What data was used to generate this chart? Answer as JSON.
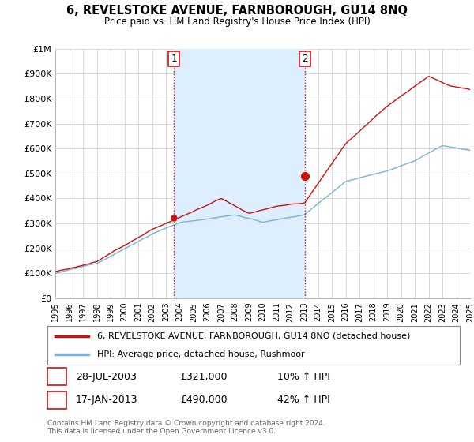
{
  "title": "6, REVELSTOKE AVENUE, FARNBOROUGH, GU14 8NQ",
  "subtitle": "Price paid vs. HM Land Registry's House Price Index (HPI)",
  "ylabel_ticks": [
    "£0",
    "£100K",
    "£200K",
    "£300K",
    "£400K",
    "£500K",
    "£600K",
    "£700K",
    "£800K",
    "£900K",
    "£1M"
  ],
  "ytick_values": [
    0,
    100000,
    200000,
    300000,
    400000,
    500000,
    600000,
    700000,
    800000,
    900000,
    1000000
  ],
  "ylim": [
    0,
    1000000
  ],
  "sale1_date": 2003.57,
  "sale1_price": 321000,
  "sale1_label": "1",
  "sale2_date": 2013.05,
  "sale2_price": 490000,
  "sale2_label": "2",
  "hpi_color": "#7ab3d8",
  "price_color": "#cc1111",
  "dashed_color": "#cc1111",
  "shade_color": "#ddeeff",
  "background_color": "#ffffff",
  "grid_color": "#cccccc",
  "legend_entry1": "6, REVELSTOKE AVENUE, FARNBOROUGH, GU14 8NQ (detached house)",
  "legend_entry2": "HPI: Average price, detached house, Rushmoor",
  "table_row1": [
    "1",
    "28-JUL-2003",
    "£321,000",
    "10% ↑ HPI"
  ],
  "table_row2": [
    "2",
    "17-JAN-2013",
    "£490,000",
    "42% ↑ HPI"
  ],
  "footnote": "Contains HM Land Registry data © Crown copyright and database right 2024.\nThis data is licensed under the Open Government Licence v3.0.",
  "xstart": 1995,
  "xend": 2025
}
